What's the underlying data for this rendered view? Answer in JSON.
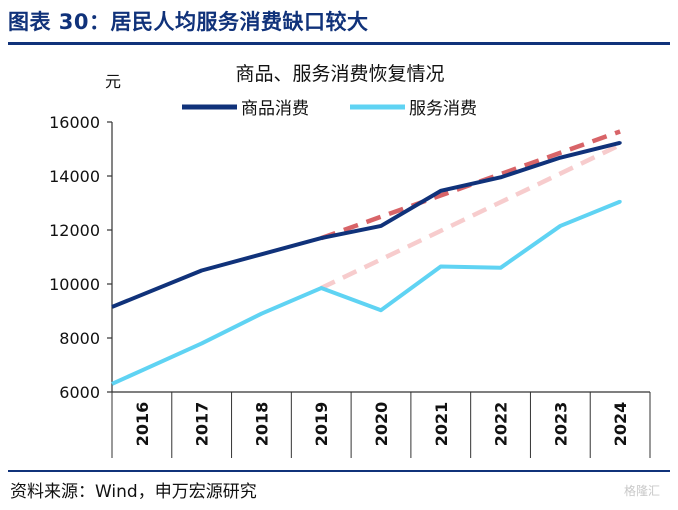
{
  "figure_title": "图表 30：居民人均服务消费缺口较大",
  "source": "资料来源：Wind，申万宏源研究",
  "watermark": "格隆汇",
  "colors": {
    "brand": "#10327a",
    "goods": "#10327a",
    "services": "#5fd3f3",
    "goods_trend": "#d86468",
    "services_trend": "#f7cccd"
  },
  "chart_data": {
    "type": "line",
    "title": "商品、服务消费恢复情况",
    "ylabel": "元",
    "xlabel": "",
    "ylim": [
      6000,
      16000
    ],
    "yticks": [
      6000,
      8000,
      10000,
      12000,
      14000,
      16000
    ],
    "x": [
      "2016",
      "2017",
      "2018",
      "2019",
      "2020",
      "2021",
      "2022",
      "2023",
      "2024"
    ],
    "legend_position": "top",
    "grid": false,
    "series": [
      {
        "name": "商品消费",
        "style": "solid",
        "values": [
          9600,
          10500,
          11100,
          11700,
          12150,
          13450,
          13950,
          14680,
          15230
        ]
      },
      {
        "name": "服务消费",
        "style": "solid",
        "values": [
          6800,
          7800,
          8900,
          9850,
          9030,
          10650,
          10600,
          12150,
          13050
        ]
      }
    ],
    "trendlines": [
      {
        "style": "dashed",
        "x": [
          "2019",
          "2024"
        ],
        "values": [
          11700,
          15650
        ]
      },
      {
        "style": "dashed",
        "x": [
          "2019",
          "2024"
        ],
        "values": [
          9850,
          15150
        ]
      }
    ]
  }
}
